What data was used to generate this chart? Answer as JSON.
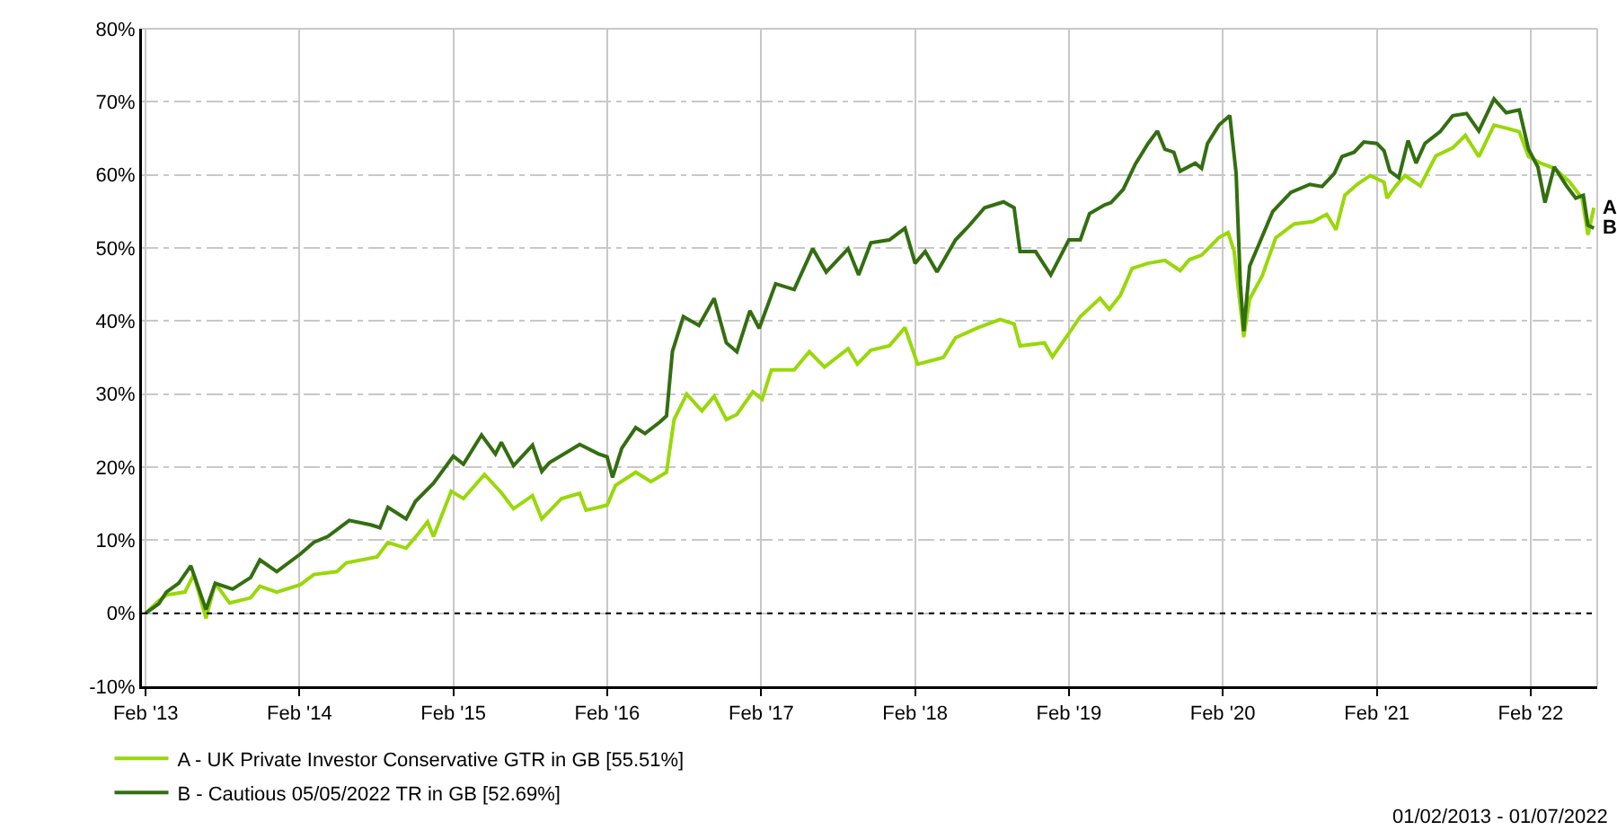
{
  "chart_data": {
    "type": "line",
    "legend": "bottom left",
    "grid": true,
    "line_style": "solid",
    "xlim": [
      "2013-01-23",
      "2022-07-09"
    ],
    "xticks": [
      {
        "value": "2013-02-01",
        "label": "Feb '13"
      },
      {
        "value": "2014-02-01",
        "label": "Feb '14"
      },
      {
        "value": "2015-02-01",
        "label": "Feb '15"
      },
      {
        "value": "2016-02-01",
        "label": "Feb '16"
      },
      {
        "value": "2017-02-01",
        "label": "Feb '17"
      },
      {
        "value": "2018-02-01",
        "label": "Feb '18"
      },
      {
        "value": "2019-02-01",
        "label": "Feb '19"
      },
      {
        "value": "2020-02-01",
        "label": "Feb '20"
      },
      {
        "value": "2021-02-01",
        "label": "Feb '21"
      },
      {
        "value": "2022-02-01",
        "label": "Feb '22"
      }
    ],
    "ylim": [
      -10,
      80
    ],
    "yticks": [
      {
        "value": -10,
        "label": "-10%"
      },
      {
        "value": 0,
        "label": "0%"
      },
      {
        "value": 10,
        "label": "10%"
      },
      {
        "value": 20,
        "label": "20%"
      },
      {
        "value": 30,
        "label": "30%"
      },
      {
        "value": 40,
        "label": "40%"
      },
      {
        "value": 50,
        "label": "50%"
      },
      {
        "value": 60,
        "label": "60%"
      },
      {
        "value": 70,
        "label": "70%"
      },
      {
        "value": 80,
        "label": "80%"
      }
    ],
    "ref_lines": [
      {
        "axis": "y",
        "value": 0,
        "color": "#000000",
        "line_style": "dotted"
      }
    ],
    "annotations": [
      {
        "text": "A",
        "x": "2022-07-01",
        "y": 55.5
      },
      {
        "text": "B",
        "x": "2022-07-01",
        "y": 52.7
      },
      "01/02/2013 - 01/07/2022"
    ],
    "series": [
      {
        "name": "A - UK Private Investor Conservative GTR in GB [55.51%]",
        "color": "#99d80a",
        "x": [
          "2013-02-01",
          "2013-03-04",
          "2013-03-22",
          "2013-05-05",
          "2013-05-26",
          "2013-06-24",
          "2013-07-16",
          "2013-08-19",
          "2013-10-08",
          "2013-10-30",
          "2013-12-09",
          "2014-02-03",
          "2014-03-07",
          "2014-05-01",
          "2014-05-23",
          "2014-08-04",
          "2014-08-30",
          "2014-10-12",
          "2014-11-10",
          "2014-12-02",
          "2014-12-16",
          "2015-01-27",
          "2015-02-25",
          "2015-04-16",
          "2015-05-26",
          "2015-06-24",
          "2015-08-08",
          "2015-08-30",
          "2015-10-16",
          "2015-11-28",
          "2015-12-13",
          "2016-01-12",
          "2016-02-01",
          "2016-02-21",
          "2016-04-09",
          "2016-05-15",
          "2016-06-21",
          "2016-07-09",
          "2016-08-08",
          "2016-09-13",
          "2016-10-12",
          "2016-11-10",
          "2016-12-05",
          "2017-01-12",
          "2017-02-03",
          "2017-02-25",
          "2017-04-20",
          "2017-05-26",
          "2017-07-01",
          "2017-08-26",
          "2017-09-17",
          "2017-10-19",
          "2017-12-02",
          "2018-01-08",
          "2018-02-07",
          "2018-04-09",
          "2018-05-08",
          "2018-07-01",
          "2018-08-22",
          "2018-09-24",
          "2018-10-08",
          "2018-12-05",
          "2018-12-24",
          "2019-02-01",
          "2019-02-28",
          "2019-04-16",
          "2019-05-08",
          "2019-06-03",
          "2019-07-01",
          "2019-08-08",
          "2019-09-17",
          "2019-10-23",
          "2019-11-14",
          "2019-12-13",
          "2020-01-23",
          "2020-02-14",
          "2020-02-28",
          "2020-03-14",
          "2020-03-22",
          "2020-04-05",
          "2020-05-05",
          "2020-06-06",
          "2020-07-20",
          "2020-09-02",
          "2020-10-05",
          "2020-10-27",
          "2020-11-17",
          "2020-12-16",
          "2021-01-16",
          "2021-02-18",
          "2021-02-25",
          "2021-03-18",
          "2021-04-09",
          "2021-05-15",
          "2021-06-21",
          "2021-07-31",
          "2021-08-30",
          "2021-10-01",
          "2021-11-06",
          "2021-12-05",
          "2022-01-05",
          "2022-01-27",
          "2022-02-25",
          "2022-03-29",
          "2022-05-05",
          "2022-06-03",
          "2022-06-17",
          "2022-07-01"
        ],
        "values": [
          0,
          1.7,
          2.5,
          2.9,
          5.3,
          -0.7,
          4.1,
          1.4,
          2.1,
          3.7,
          2.9,
          3.9,
          5.3,
          5.7,
          6.9,
          7.7,
          9.7,
          8.9,
          10.9,
          12.5,
          10.5,
          16.7,
          15.7,
          19.0,
          16.5,
          14.3,
          16.1,
          12.9,
          15.7,
          16.4,
          14.1,
          14.5,
          14.8,
          17.5,
          19.3,
          18.0,
          19.3,
          26.5,
          30.0,
          27.7,
          29.7,
          26.5,
          27.2,
          30.3,
          29.3,
          33.3,
          33.3,
          35.8,
          33.7,
          36.2,
          34.1,
          36.0,
          36.6,
          39.1,
          34.1,
          35.0,
          37.7,
          39.1,
          40.2,
          39.6,
          36.6,
          37.0,
          35.1,
          38.3,
          40.6,
          43.1,
          41.6,
          43.5,
          47.2,
          47.9,
          48.3,
          46.9,
          48.4,
          49.0,
          51.4,
          52.1,
          49.6,
          42.0,
          37.8,
          43.0,
          46.2,
          51.4,
          53.3,
          53.6,
          54.6,
          52.5,
          57.2,
          58.7,
          59.9,
          59.0,
          56.8,
          58.5,
          59.9,
          58.5,
          62.6,
          63.7,
          65.4,
          62.5,
          66.8,
          66.4,
          65.9,
          62.5,
          61.6,
          60.9,
          59.0,
          56.8,
          51.8,
          55.5
        ]
      },
      {
        "name": "B - Cautious 05/05/2022 TR in GB [52.69%]",
        "color": "#336e10",
        "x": [
          "2013-02-01",
          "2013-03-04",
          "2013-03-22",
          "2013-04-20",
          "2013-05-19",
          "2013-06-24",
          "2013-07-16",
          "2013-08-26",
          "2013-10-08",
          "2013-10-30",
          "2013-12-09",
          "2014-02-03",
          "2014-03-07",
          "2014-04-09",
          "2014-05-30",
          "2014-07-20",
          "2014-08-11",
          "2014-08-30",
          "2014-10-12",
          "2014-11-03",
          "2014-12-16",
          "2015-02-01",
          "2015-02-25",
          "2015-04-09",
          "2015-05-12",
          "2015-05-26",
          "2015-06-24",
          "2015-08-08",
          "2015-08-30",
          "2015-09-17",
          "2015-11-28",
          "2016-01-12",
          "2016-02-01",
          "2016-02-14",
          "2016-03-07",
          "2016-04-09",
          "2016-05-01",
          "2016-06-06",
          "2016-06-21",
          "2016-07-05",
          "2016-07-31",
          "2016-09-06",
          "2016-10-12",
          "2016-11-10",
          "2016-12-05",
          "2017-01-05",
          "2017-01-27",
          "2017-03-07",
          "2017-04-20",
          "2017-06-03",
          "2017-07-05",
          "2017-08-26",
          "2017-09-20",
          "2017-10-19",
          "2017-12-02",
          "2018-01-08",
          "2018-02-01",
          "2018-02-25",
          "2018-03-25",
          "2018-05-08",
          "2018-06-10",
          "2018-07-16",
          "2018-08-30",
          "2018-09-24",
          "2018-10-08",
          "2018-11-14",
          "2018-12-20",
          "2019-02-01",
          "2019-02-28",
          "2019-03-22",
          "2019-04-27",
          "2019-05-12",
          "2019-06-10",
          "2019-07-09",
          "2019-08-08",
          "2019-08-30",
          "2019-09-17",
          "2019-10-08",
          "2019-10-23",
          "2019-11-28",
          "2019-12-13",
          "2019-12-27",
          "2020-01-23",
          "2020-02-18",
          "2020-03-04",
          "2020-03-14",
          "2020-03-22",
          "2020-04-05",
          "2020-04-27",
          "2020-05-30",
          "2020-07-12",
          "2020-08-26",
          "2020-09-24",
          "2020-10-23",
          "2020-11-10",
          "2020-12-09",
          "2021-01-01",
          "2021-02-01",
          "2021-02-18",
          "2021-03-04",
          "2021-03-25",
          "2021-04-16",
          "2021-05-05",
          "2021-05-26",
          "2021-07-01",
          "2021-07-31",
          "2021-09-02",
          "2021-10-01",
          "2021-11-06",
          "2021-12-05",
          "2022-01-05",
          "2022-01-27",
          "2022-02-18",
          "2022-03-07",
          "2022-03-29",
          "2022-04-27",
          "2022-05-19",
          "2022-06-06",
          "2022-06-17",
          "2022-07-01"
        ],
        "values": [
          0,
          1.3,
          2.9,
          4.1,
          6.5,
          0.5,
          4.1,
          3.3,
          4.9,
          7.3,
          5.7,
          8.1,
          9.7,
          10.5,
          12.7,
          12.1,
          11.7,
          14.5,
          12.9,
          15.3,
          17.8,
          21.5,
          20.4,
          24.4,
          21.8,
          23.4,
          20.2,
          23.0,
          19.4,
          20.6,
          23.1,
          21.8,
          21.4,
          18.6,
          22.6,
          25.4,
          24.6,
          26.2,
          27.0,
          35.8,
          40.6,
          39.4,
          43.1,
          37.0,
          35.8,
          41.4,
          39.0,
          45.1,
          44.3,
          49.9,
          46.7,
          49.9,
          46.3,
          50.7,
          51.1,
          52.7,
          47.9,
          49.5,
          46.7,
          51.1,
          53.1,
          55.5,
          56.3,
          55.5,
          49.5,
          49.5,
          46.3,
          51.1,
          51.1,
          54.7,
          55.9,
          56.2,
          58.0,
          61.5,
          64.3,
          66.0,
          63.5,
          63.1,
          60.5,
          61.6,
          60.9,
          64.3,
          66.8,
          68.1,
          60.2,
          45.0,
          38.6,
          47.5,
          50.5,
          55.0,
          57.6,
          58.7,
          58.4,
          60.2,
          62.5,
          63.1,
          64.5,
          64.3,
          63.3,
          60.5,
          59.6,
          64.7,
          61.6,
          64.3,
          65.9,
          68.1,
          68.4,
          66.0,
          70.4,
          68.5,
          68.9,
          63.5,
          61.1,
          56.2,
          61.1,
          58.5,
          56.8,
          57.2,
          53.1,
          52.7
        ]
      }
    ]
  }
}
